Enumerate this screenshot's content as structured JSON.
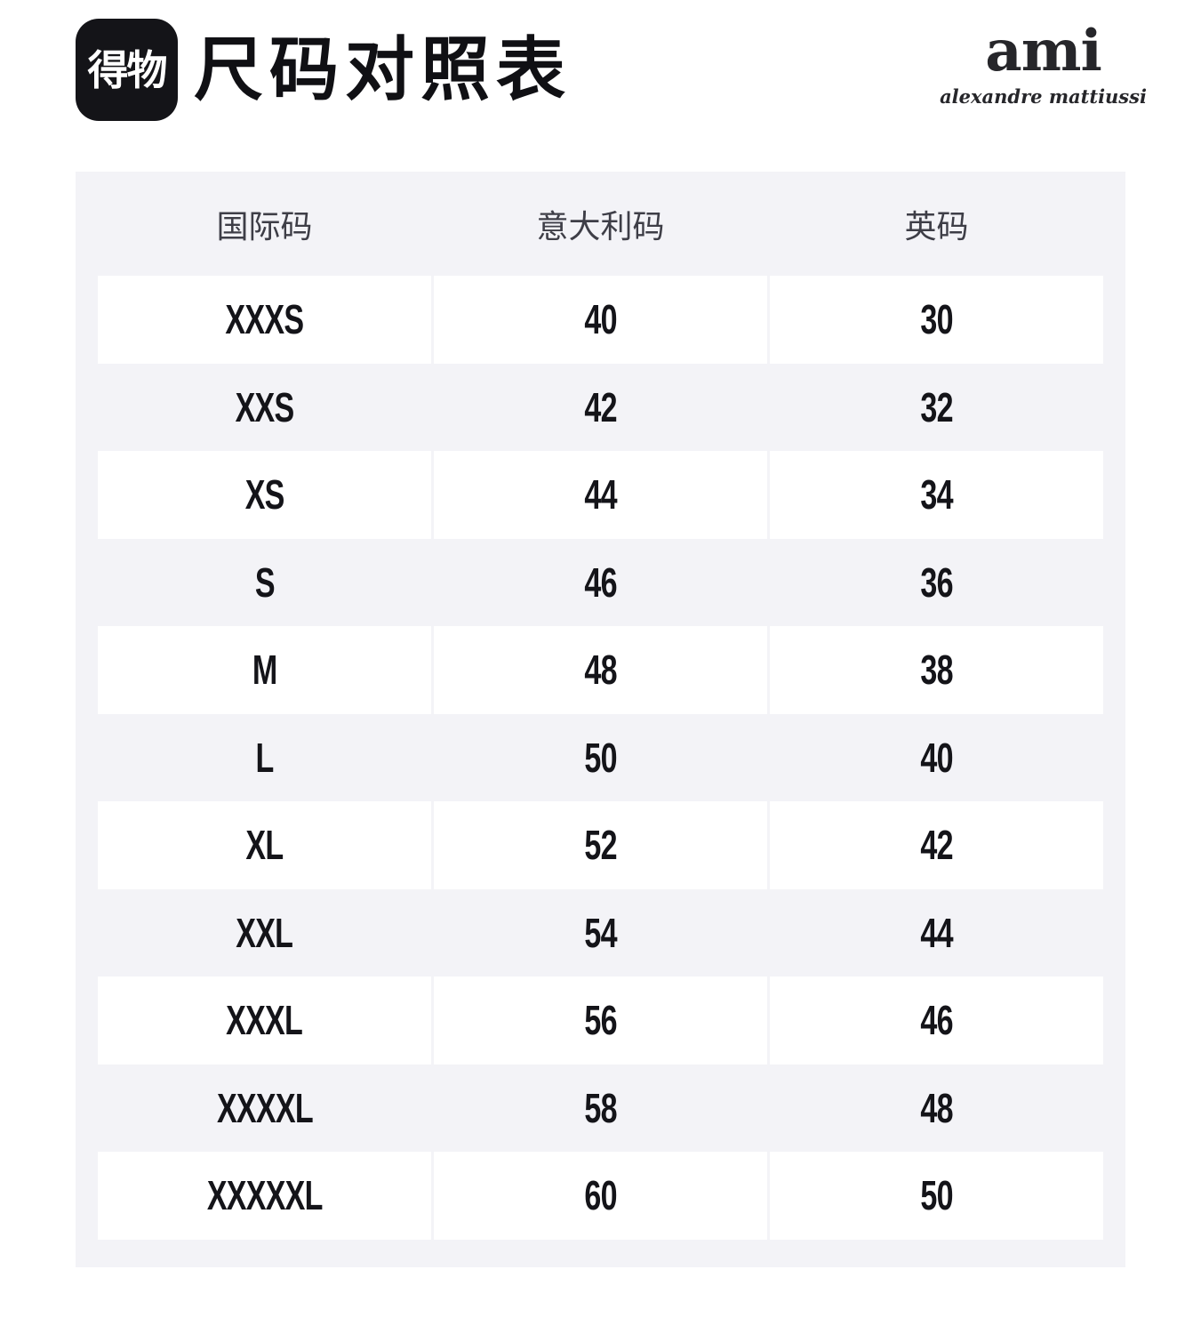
{
  "page": {
    "title": "尺码对照表"
  },
  "brand": {
    "app_logo_text": "得物",
    "brand_name": "ami",
    "brand_subtitle": "alexandre mattiussi"
  },
  "table": {
    "headers": {
      "international": "国际码",
      "italy": "意大利码",
      "uk": "英码"
    },
    "rows": [
      {
        "intl": "XXXS",
        "italy": "40",
        "uk": "30"
      },
      {
        "intl": "XXS",
        "italy": "42",
        "uk": "32"
      },
      {
        "intl": "XS",
        "italy": "44",
        "uk": "34"
      },
      {
        "intl": "S",
        "italy": "46",
        "uk": "36"
      },
      {
        "intl": "M",
        "italy": "48",
        "uk": "38"
      },
      {
        "intl": "L",
        "italy": "50",
        "uk": "40"
      },
      {
        "intl": "XL",
        "italy": "52",
        "uk": "42"
      },
      {
        "intl": "XXL",
        "italy": "54",
        "uk": "44"
      },
      {
        "intl": "XXXL",
        "italy": "56",
        "uk": "46"
      },
      {
        "intl": "XXXXL",
        "italy": "58",
        "uk": "48"
      },
      {
        "intl": "XXXXXL",
        "italy": "60",
        "uk": "50"
      }
    ]
  },
  "colors": {
    "page_background": "#ffffff",
    "panel_background": "#f3f3f7",
    "row_white": "#ffffff",
    "logo_background": "#141418",
    "value_text": "#141419",
    "header_text": "#3e3e47"
  }
}
